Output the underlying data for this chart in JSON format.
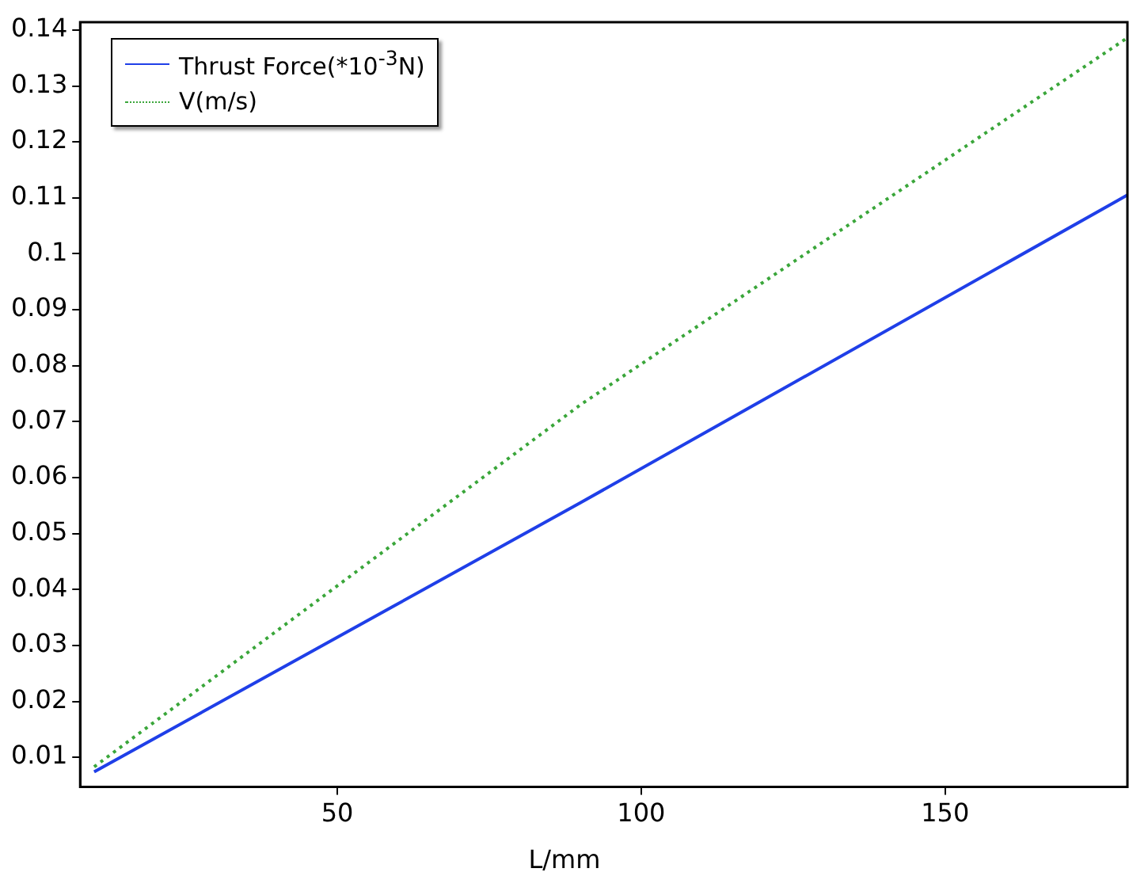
{
  "chart_data": {
    "type": "line",
    "xlabel": "L/mm",
    "x": [
      10,
      90,
      180
    ],
    "series": [
      {
        "name": "Thrust Force(*10$^{-3}$N)",
        "color": "#1f3fe8",
        "values": [
          0.0074,
          0.0555,
          0.1105
        ],
        "line_style": "solid"
      },
      {
        "name": "V(m/s)",
        "color": "#3aa63a",
        "values": [
          0.0083,
          0.073,
          0.1386
        ],
        "line_style": "dotted"
      }
    ],
    "xlim": [
      7.7,
      180
    ],
    "xticks": [
      50,
      100,
      150
    ],
    "ylim": [
      0.0047,
      0.1414
    ],
    "yticks": [
      0.01,
      0.02,
      0.03,
      0.04,
      0.05,
      0.06,
      0.07,
      0.08,
      0.09,
      0.1,
      0.11,
      0.12,
      0.13,
      0.14
    ],
    "grid": false,
    "legend": "top left",
    "marker": "none"
  }
}
